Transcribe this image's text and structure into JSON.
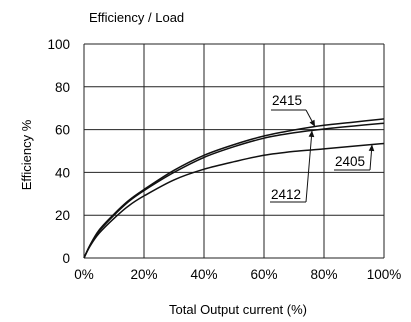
{
  "chart_data": {
    "type": "line",
    "title": "Efficiency / Load",
    "xlabel": "Total Output current (%)",
    "ylabel": "Efficiency %",
    "xlim": [
      0,
      100
    ],
    "ylim": [
      0,
      100
    ],
    "grid": true,
    "x_ticks": [
      0,
      20,
      40,
      60,
      80,
      100
    ],
    "x_tick_labels": [
      "0%",
      "20%",
      "40%",
      "60%",
      "80%",
      "100%"
    ],
    "y_ticks": [
      0,
      20,
      40,
      60,
      80,
      100
    ],
    "y_tick_labels": [
      "0",
      "20",
      "40",
      "60",
      "80",
      "100"
    ],
    "series": [
      {
        "name": "2415",
        "x": [
          0,
          2,
          5,
          10,
          15,
          20,
          30,
          40,
          50,
          60,
          70,
          80,
          90,
          100
        ],
        "y": [
          0,
          6,
          13,
          20.5,
          27,
          32,
          41,
          48,
          53,
          57,
          59.8,
          62,
          63.5,
          65
        ]
      },
      {
        "name": "2412",
        "x": [
          0,
          2,
          5,
          10,
          15,
          20,
          30,
          40,
          50,
          60,
          70,
          80,
          90,
          100
        ],
        "y": [
          0,
          6,
          12.5,
          20,
          26.5,
          31.5,
          40,
          47,
          52,
          56,
          58.5,
          60.3,
          61.7,
          63
        ]
      },
      {
        "name": "2405",
        "x": [
          0,
          2,
          5,
          10,
          15,
          20,
          30,
          40,
          50,
          60,
          70,
          80,
          90,
          100
        ],
        "y": [
          0,
          5.5,
          11.5,
          18.5,
          24.5,
          29,
          36.5,
          41.5,
          45,
          48,
          49.8,
          51,
          52.3,
          53.5
        ]
      }
    ],
    "annotations": [
      {
        "text": "2415",
        "series": "2415"
      },
      {
        "text": "2412",
        "series": "2412"
      },
      {
        "text": "2405",
        "series": "2405"
      }
    ]
  }
}
